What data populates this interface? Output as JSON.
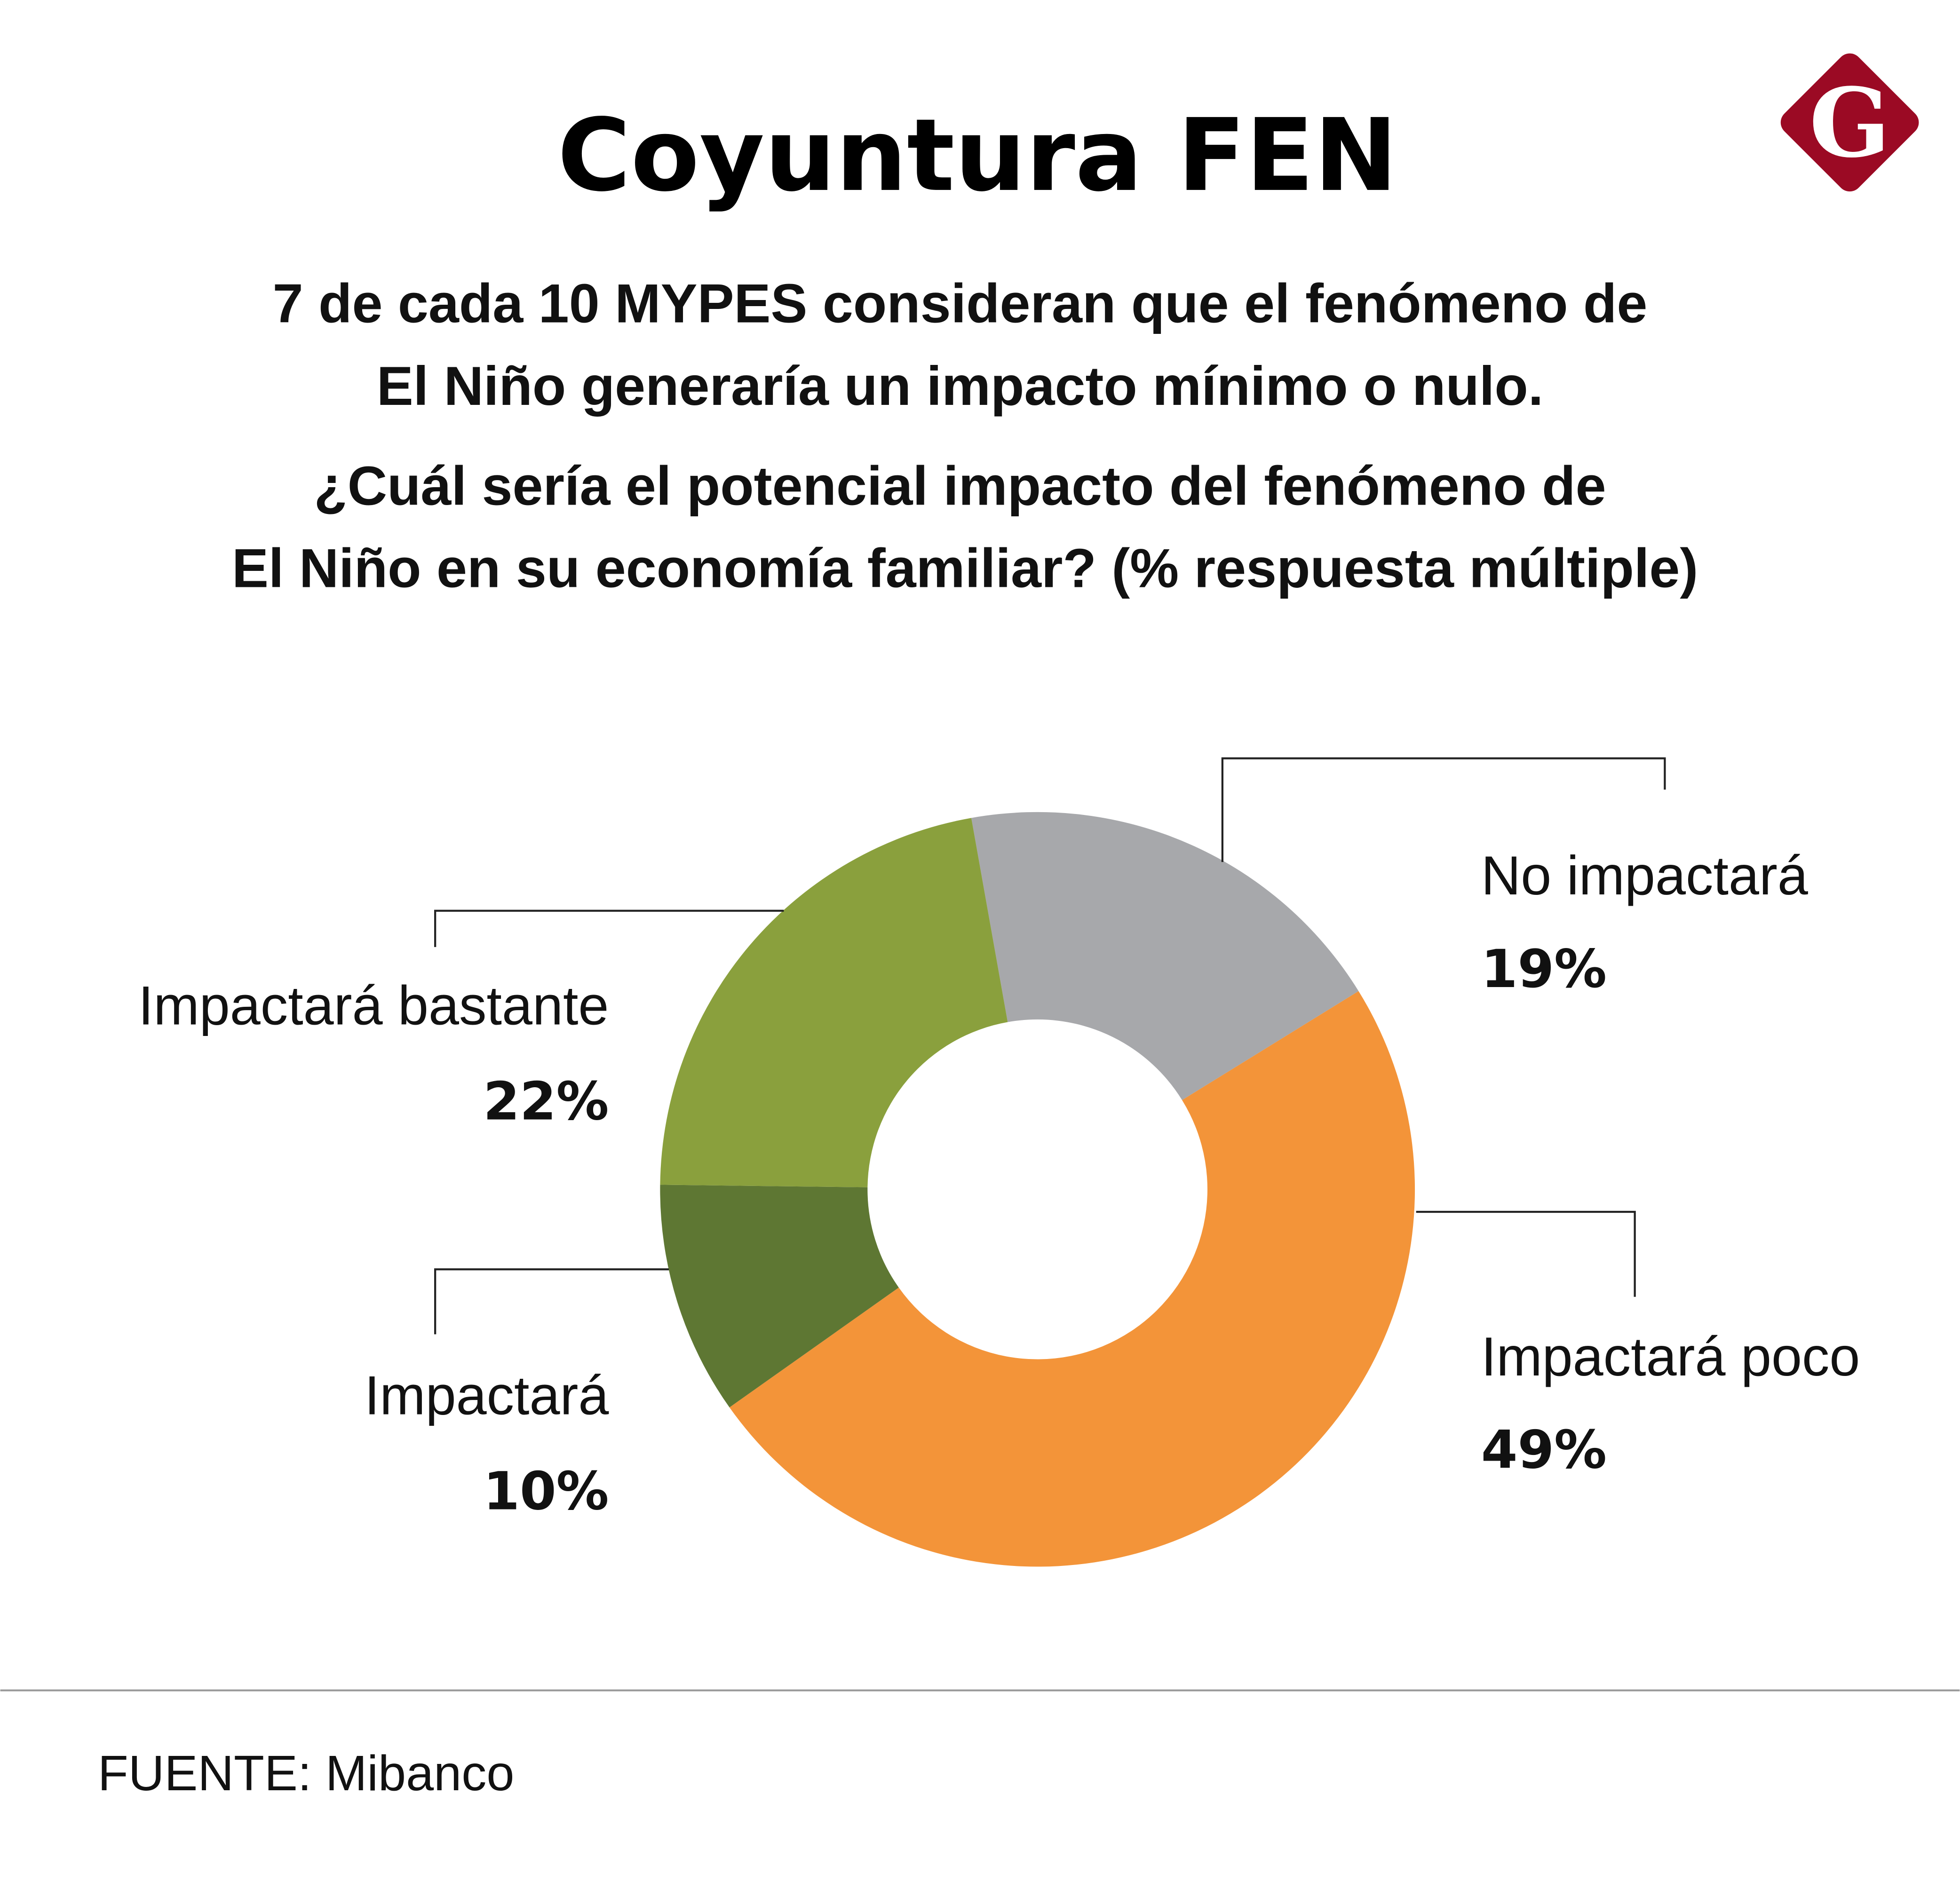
{
  "header": {
    "title": "Coyuntura FEN",
    "subtitle_lines": [
      "7 de cada 10 MYPES consideran que el fenómeno de",
      "El Niño generaría un impacto mínimo o nulo."
    ],
    "question_lines": [
      "¿Cuál sería el potencial impacto del fenómeno de",
      "El Niño en su economía familiar? (% respuesta múltiple)"
    ]
  },
  "logo": {
    "letter": "G",
    "color": "#9b0a24"
  },
  "chart_data": {
    "type": "pie",
    "variant": "donut",
    "unit": "%",
    "slices": [
      {
        "label": "No impactará",
        "value": 19,
        "display": "19%",
        "color": "#a7a8ab"
      },
      {
        "label": "Impactará poco",
        "value": 49,
        "display": "49%",
        "color": "#f39439"
      },
      {
        "label": "Impactará",
        "value": 10,
        "display": "10%",
        "color": "#5e7733"
      },
      {
        "label": "Impactará bastante",
        "value": 22,
        "display": "22%",
        "color": "#8aa03d"
      }
    ]
  },
  "footer": {
    "source": "FUENTE: Mibanco"
  }
}
